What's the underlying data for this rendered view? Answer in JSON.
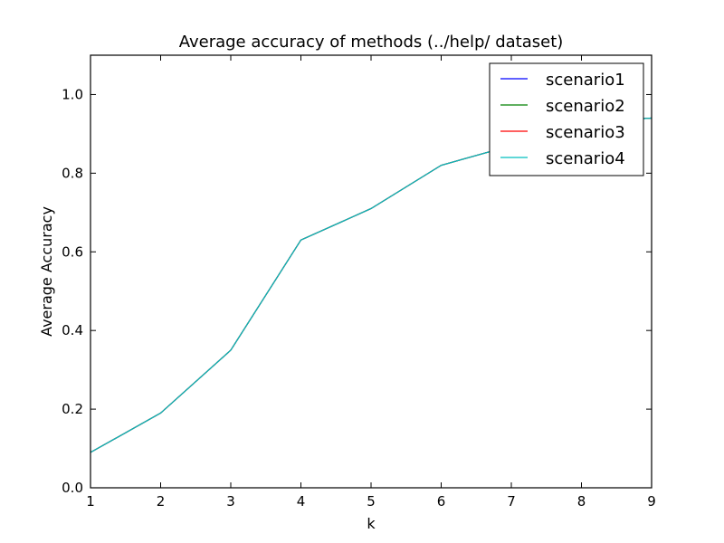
{
  "chart_data": {
    "type": "line",
    "title": "Average accuracy of methods (../help/ dataset)",
    "xlabel": "k",
    "ylabel": "Average Accuracy",
    "xlim": [
      1,
      9
    ],
    "ylim": [
      0.0,
      1.1
    ],
    "x_ticks": [
      "1",
      "2",
      "3",
      "4",
      "5",
      "6",
      "7",
      "8",
      "9"
    ],
    "y_ticks": [
      "0.0",
      "0.2",
      "0.4",
      "0.6",
      "0.8",
      "1.0"
    ],
    "grid": false,
    "legend_position": "top-right",
    "x": [
      1,
      2,
      3,
      4,
      5,
      6,
      7,
      8,
      9
    ],
    "series": [
      {
        "name": "scenario1",
        "color": "#0000ff",
        "values": [
          0.09,
          0.19,
          0.35,
          0.63,
          0.71,
          0.82,
          0.87,
          0.93,
          0.94
        ]
      },
      {
        "name": "scenario2",
        "color": "#008000",
        "values": [
          0.09,
          0.19,
          0.35,
          0.63,
          0.71,
          0.82,
          0.87,
          0.93,
          0.94
        ]
      },
      {
        "name": "scenario3",
        "color": "#ff0000",
        "values": [
          0.09,
          0.19,
          0.35,
          0.63,
          0.71,
          0.82,
          0.87,
          0.93,
          0.94
        ]
      },
      {
        "name": "scenario4",
        "color": "#00bfbf",
        "values": [
          0.09,
          0.19,
          0.35,
          0.63,
          0.71,
          0.82,
          0.87,
          0.93,
          0.94
        ]
      }
    ]
  }
}
